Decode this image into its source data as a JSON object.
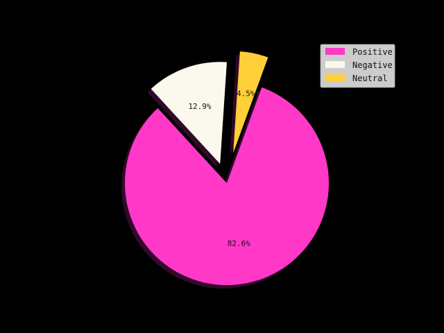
{
  "chart_data": {
    "type": "pie",
    "title": "",
    "categories": [
      "Positive",
      "Negative",
      "Neutral"
    ],
    "values": [
      82.6,
      12.9,
      4.5
    ],
    "labels": [
      "82.6%",
      "12.9%",
      "4.5%"
    ],
    "colors": [
      "#ff38c8",
      "#fbf8ee",
      "#ffcf38"
    ],
    "explode": [
      0,
      0.2,
      0.3
    ],
    "start_angle_deg": 70,
    "direction": "clockwise",
    "shadow": true,
    "legend": {
      "location": "upper-right",
      "entries": [
        "Positive",
        "Negative",
        "Neutral"
      ]
    }
  }
}
